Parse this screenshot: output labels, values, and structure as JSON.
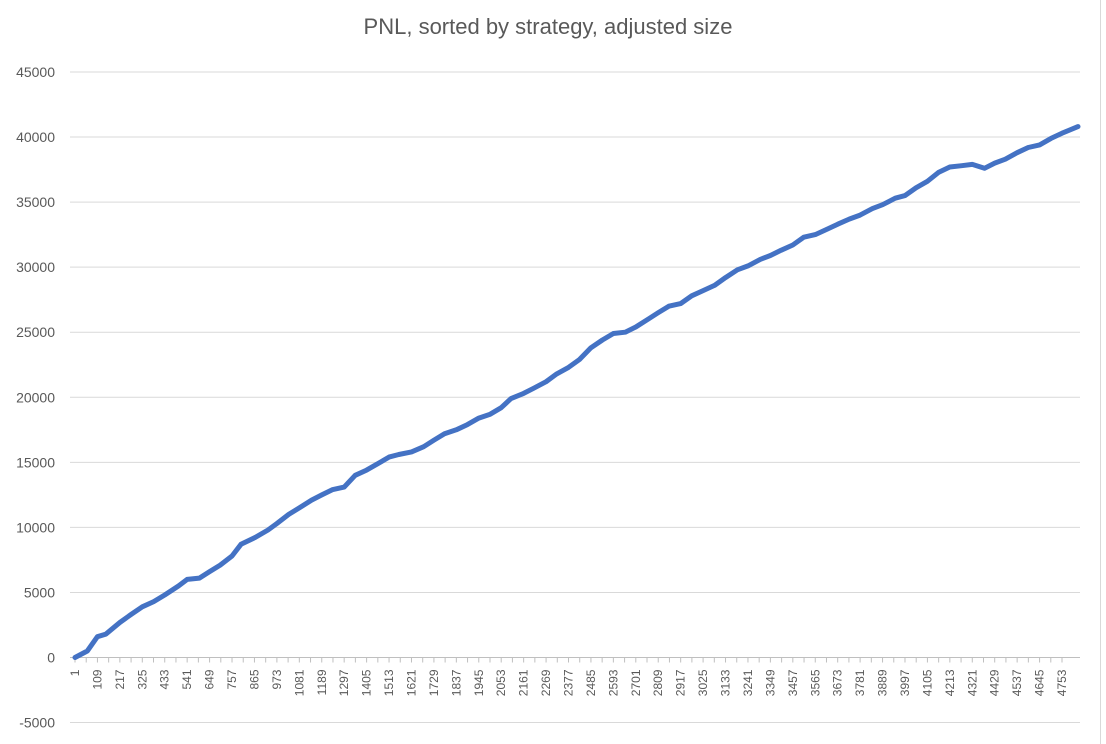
{
  "chart_data": {
    "type": "line",
    "title": "PNL, sorted by strategy, adjusted size",
    "xlabel": "",
    "ylabel": "",
    "ylim": [
      -5000,
      45000
    ],
    "y_ticks": [
      -5000,
      0,
      5000,
      10000,
      15000,
      20000,
      25000,
      30000,
      35000,
      40000,
      45000
    ],
    "x_range": [
      1,
      4830
    ],
    "x_tick_labels": [
      "1",
      "109",
      "217",
      "325",
      "433",
      "541",
      "649",
      "757",
      "865",
      "973",
      "1081",
      "1189",
      "1297",
      "1405",
      "1513",
      "1621",
      "1729",
      "1837",
      "1945",
      "2053",
      "2161",
      "2269",
      "2377",
      "2485",
      "2593",
      "2701",
      "2809",
      "2917",
      "3025",
      "3133",
      "3241",
      "3349",
      "3457",
      "3565",
      "3673",
      "3781",
      "3889",
      "3997",
      "4105",
      "4213",
      "4321",
      "4429",
      "4537",
      "4645",
      "4753"
    ],
    "grid": "horizontal",
    "legend": "none",
    "series": [
      {
        "color": "#4472C4",
        "x": [
          1,
          60,
          109,
          150,
          217,
          270,
          325,
          380,
          433,
          500,
          541,
          600,
          649,
          700,
          757,
          800,
          865,
          930,
          973,
          1030,
          1081,
          1140,
          1189,
          1240,
          1297,
          1350,
          1405,
          1460,
          1513,
          1560,
          1621,
          1680,
          1729,
          1780,
          1837,
          1890,
          1945,
          2000,
          2053,
          2100,
          2161,
          2210,
          2269,
          2320,
          2377,
          2430,
          2485,
          2540,
          2593,
          2650,
          2701,
          2760,
          2809,
          2860,
          2917,
          2970,
          3025,
          3080,
          3133,
          3190,
          3241,
          3300,
          3349,
          3400,
          3457,
          3510,
          3565,
          3620,
          3673,
          3730,
          3781,
          3840,
          3889,
          3950,
          3997,
          4050,
          4105,
          4160,
          4213,
          4270,
          4321,
          4380,
          4429,
          4480,
          4537,
          4590,
          4645,
          4700,
          4753,
          4830
        ],
        "values": [
          0,
          500,
          1600,
          1800,
          2700,
          3300,
          3900,
          4300,
          4800,
          5500,
          6000,
          6100,
          6600,
          7100,
          7800,
          8700,
          9200,
          9800,
          10300,
          11000,
          11500,
          12100,
          12500,
          12900,
          13100,
          14000,
          14400,
          14900,
          15400,
          15600,
          15800,
          16200,
          16700,
          17200,
          17500,
          17900,
          18400,
          18700,
          19200,
          19900,
          20300,
          20700,
          21200,
          21800,
          22300,
          22900,
          23800,
          24400,
          24900,
          25000,
          25400,
          26000,
          26500,
          27000,
          27200,
          27800,
          28200,
          28600,
          29200,
          29800,
          30100,
          30600,
          30900,
          31300,
          31700,
          32300,
          32500,
          32900,
          33300,
          33700,
          34000,
          34500,
          34800,
          35300,
          35500,
          36100,
          36600,
          37300,
          37700,
          37800,
          37900,
          37600,
          38000,
          38300,
          38800,
          39200,
          39400,
          39900,
          40300,
          40800
        ]
      }
    ]
  }
}
